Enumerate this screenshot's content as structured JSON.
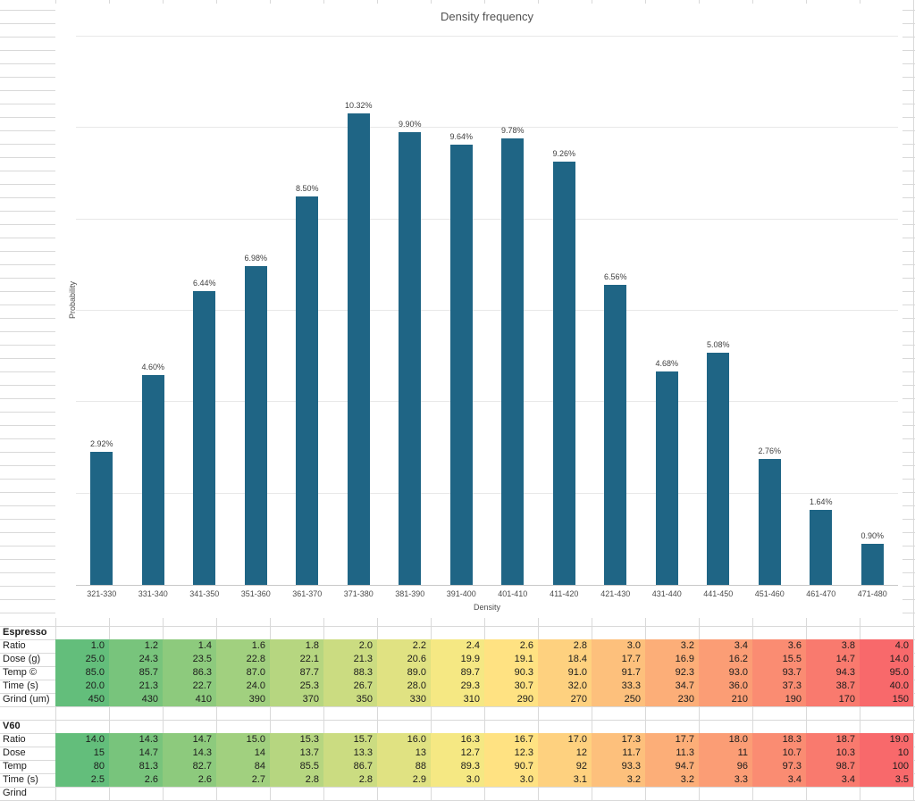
{
  "chart_data": {
    "type": "bar",
    "title": "Density frequency",
    "xlabel": "Density",
    "ylabel": "Probability",
    "categories": [
      "321-330",
      "331-340",
      "341-350",
      "351-360",
      "361-370",
      "371-380",
      "381-390",
      "391-400",
      "401-410",
      "411-420",
      "421-430",
      "431-440",
      "441-450",
      "451-460",
      "461-470",
      "471-480"
    ],
    "values": [
      2.92,
      4.6,
      6.44,
      6.98,
      8.5,
      10.32,
      9.9,
      9.64,
      9.78,
      9.26,
      6.56,
      4.68,
      5.08,
      2.76,
      1.64,
      0.9
    ],
    "value_label_format": "percent_2dp",
    "ylim": [
      0,
      12
    ],
    "gridline_step": 2,
    "grid": true,
    "legend": false,
    "bar_color": "#1f6585"
  },
  "tables": [
    {
      "title": "Espresso",
      "rows": [
        {
          "label": "Ratio",
          "values": [
            "1.0",
            "1.2",
            "1.4",
            "1.6",
            "1.8",
            "2.0",
            "2.2",
            "2.4",
            "2.6",
            "2.8",
            "3.0",
            "3.2",
            "3.4",
            "3.6",
            "3.8",
            "4.0"
          ]
        },
        {
          "label": "Dose (g)",
          "values": [
            "25.0",
            "24.3",
            "23.5",
            "22.8",
            "22.1",
            "21.3",
            "20.6",
            "19.9",
            "19.1",
            "18.4",
            "17.7",
            "16.9",
            "16.2",
            "15.5",
            "14.7",
            "14.0"
          ]
        },
        {
          "label": "Temp ©",
          "values": [
            "85.0",
            "85.7",
            "86.3",
            "87.0",
            "87.7",
            "88.3",
            "89.0",
            "89.7",
            "90.3",
            "91.0",
            "91.7",
            "92.3",
            "93.0",
            "93.7",
            "94.3",
            "95.0"
          ]
        },
        {
          "label": "Time (s)",
          "values": [
            "20.0",
            "21.3",
            "22.7",
            "24.0",
            "25.3",
            "26.7",
            "28.0",
            "29.3",
            "30.7",
            "32.0",
            "33.3",
            "34.7",
            "36.0",
            "37.3",
            "38.7",
            "40.0"
          ]
        },
        {
          "label": "Grind (um)",
          "values": [
            "450",
            "430",
            "410",
            "390",
            "370",
            "350",
            "330",
            "310",
            "290",
            "270",
            "250",
            "230",
            "210",
            "190",
            "170",
            "150"
          ]
        }
      ]
    },
    {
      "title": "V60",
      "rows": [
        {
          "label": "Ratio",
          "values": [
            "14.0",
            "14.3",
            "14.7",
            "15.0",
            "15.3",
            "15.7",
            "16.0",
            "16.3",
            "16.7",
            "17.0",
            "17.3",
            "17.7",
            "18.0",
            "18.3",
            "18.7",
            "19.0"
          ]
        },
        {
          "label": "Dose",
          "values": [
            "15",
            "14.7",
            "14.3",
            "14",
            "13.7",
            "13.3",
            "13",
            "12.7",
            "12.3",
            "12",
            "11.7",
            "11.3",
            "11",
            "10.7",
            "10.3",
            "10"
          ]
        },
        {
          "label": "Temp",
          "values": [
            "80",
            "81.3",
            "82.7",
            "84",
            "85.5",
            "86.7",
            "88",
            "89.3",
            "90.7",
            "92",
            "93.3",
            "94.7",
            "96",
            "97.3",
            "98.7",
            "100"
          ]
        },
        {
          "label": "Time (s)",
          "values": [
            "2.5",
            "2.6",
            "2.6",
            "2.7",
            "2.8",
            "2.8",
            "2.9",
            "3.0",
            "3.0",
            "3.1",
            "3.2",
            "3.2",
            "3.3",
            "3.4",
            "3.4",
            "3.5"
          ]
        },
        {
          "label": "Grind",
          "values": []
        }
      ]
    }
  ],
  "colors": {
    "bar": "#1f6585",
    "color_scale_min": "#63be7b",
    "color_scale_mid": "#ffeb84",
    "color_scale_max": "#f8696b",
    "sheet_gridline": "#d9d9d9",
    "chart_gridline": "#e8e8e8"
  }
}
